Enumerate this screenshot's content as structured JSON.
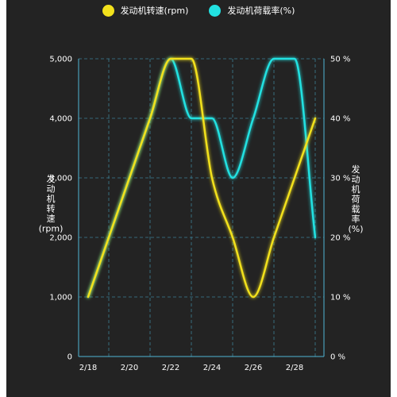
{
  "chart_data": {
    "type": "line",
    "title": "",
    "x": [
      "2/18",
      "2/19",
      "2/20",
      "2/21",
      "2/22",
      "2/23",
      "2/24",
      "2/25",
      "2/26",
      "2/27",
      "2/28",
      "3/1"
    ],
    "x_ticks": [
      "2/18",
      "2/20",
      "2/22",
      "2/24",
      "2/26",
      "2/28"
    ],
    "series": [
      {
        "name": "发动机转速(rpm)",
        "axis": "left",
        "color": "#f2e11c",
        "values": [
          1000,
          2000,
          3000,
          4000,
          5000,
          5000,
          3000,
          2000,
          1000,
          2000,
          3000,
          4000
        ]
      },
      {
        "name": "发动机荷载率(%)",
        "axis": "right",
        "color": "#22e1e1",
        "values": [
          10,
          20,
          30,
          40,
          50,
          40,
          40,
          30,
          40,
          50,
          50,
          20
        ]
      }
    ],
    "y_left": {
      "label": "发动机转速(rpm)",
      "label_lines": [
        "发",
        "动",
        "机",
        "转",
        "速",
        "(rpm)"
      ],
      "ticks": [
        "0",
        "1,000",
        "2,000",
        "3,000",
        "4,000",
        "5,000"
      ],
      "ylim": [
        0,
        5000
      ]
    },
    "y_right": {
      "label": "发动机荷载率(%)",
      "label_lines": [
        "发",
        "动",
        "机",
        "荷",
        "载",
        "率",
        "(%)"
      ],
      "ticks": [
        "0 %",
        "10 %",
        "20 %",
        "30 %",
        "40 %",
        "50 %"
      ],
      "ylim": [
        0,
        50
      ]
    },
    "legend_position": "top-center",
    "grid": true,
    "colors": {
      "background": "#232323",
      "grid": "#3d7f95",
      "axis": "#4fb6d6",
      "text": "#ffffff"
    }
  }
}
